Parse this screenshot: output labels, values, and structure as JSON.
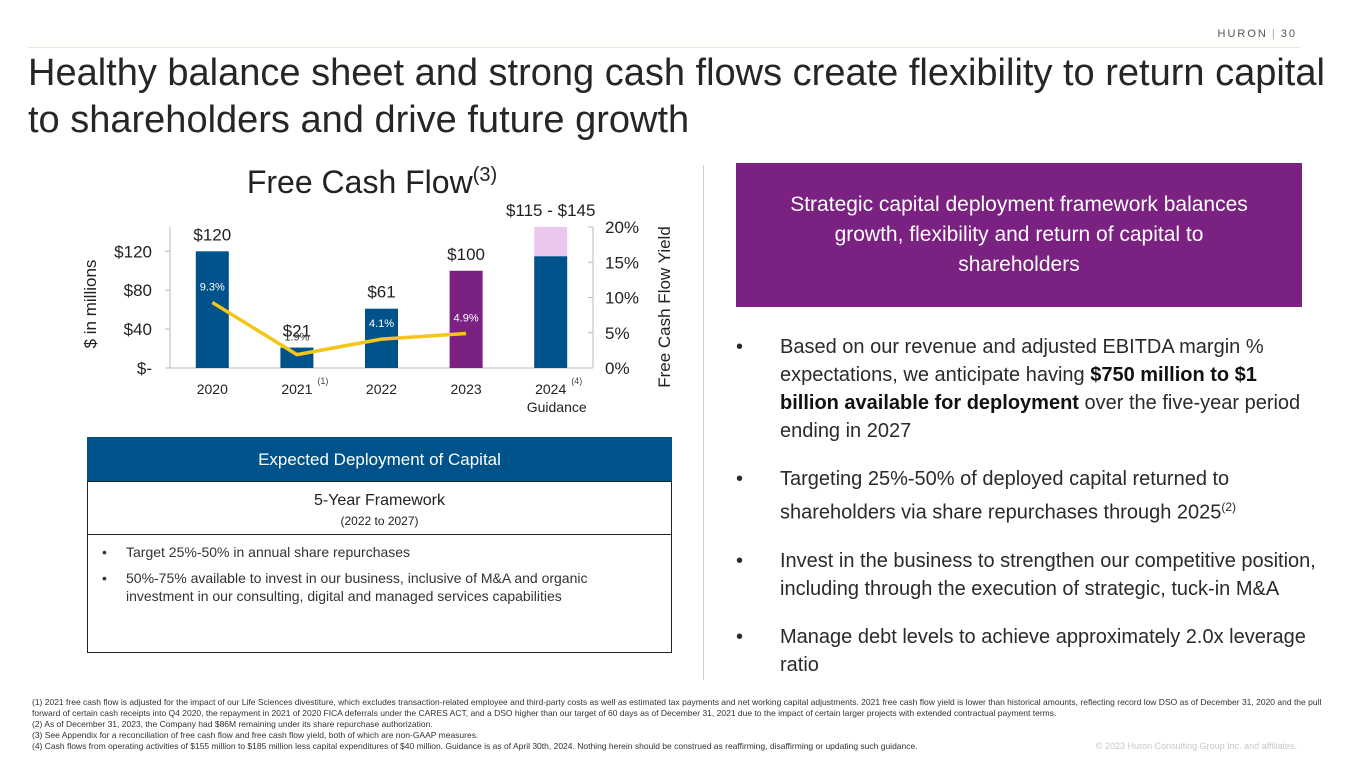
{
  "header": {
    "brand": "HURON",
    "page": "30"
  },
  "title": "Healthy balance sheet and strong cash flows create flexibility to return capital to shareholders and drive future growth",
  "chart_data": {
    "type": "bar",
    "title": "Free Cash Flow",
    "title_sup": "(3)",
    "ylabel": "$ in millions",
    "y2label": "Free Cash Flow Yield",
    "categories": [
      "2020",
      "2021",
      "2022",
      "2023",
      "2024"
    ],
    "category_notes": [
      "",
      "(1)",
      "",
      "",
      "(4)"
    ],
    "category_sub": [
      "",
      "",
      "",
      "",
      "Guidance"
    ],
    "values": [
      120,
      21,
      61,
      100,
      115
    ],
    "range_high": 145,
    "value_labels": [
      "$120",
      "$21",
      "$61",
      "$100",
      "$115  - $145"
    ],
    "bar_colors": [
      "#00538a",
      "#00538a",
      "#00538a",
      "#7a2181",
      "#00538a"
    ],
    "range_color": "#eac7ec",
    "ylim": [
      0,
      145
    ],
    "yticks": [
      0,
      40,
      80,
      120
    ],
    "ytick_labels": [
      "$-",
      "$40",
      "$80",
      "$120"
    ],
    "line": {
      "name": "Free Cash Flow Yield",
      "values": [
        9.3,
        1.9,
        4.1,
        4.9
      ],
      "labels": [
        "9.3%",
        "1.9%",
        "4.1%",
        "4.9%"
      ],
      "color": "#f5c518"
    },
    "y2lim": [
      0,
      20
    ],
    "y2ticks": [
      0,
      5,
      10,
      15,
      20
    ],
    "y2tick_labels": [
      "0%",
      "5%",
      "10%",
      "15%",
      "20%"
    ]
  },
  "deployment": {
    "header": "Expected Deployment of Capital",
    "framework_title": "5-Year Framework",
    "framework_sub": "(2022 to 2027)",
    "items": [
      "Target 25%-50% in annual  share repurchases",
      "50%-75% available to invest in our business, inclusive of M&A and organic investment in our consulting, digital and managed services capabilities"
    ]
  },
  "strategy_box": "Strategic capital deployment framework balances growth, flexibility and return of capital to shareholders",
  "bullets": {
    "b1_pre": "Based on our revenue and adjusted EBITDA margin % expectations, we anticipate having ",
    "b1_bold": "$750 million to $1 billion available for deployment",
    "b1_post": " over the five-year period ending in 2027",
    "b2": "Targeting 25%-50% of deployed capital returned to shareholders via share repurchases through 2025",
    "b2_sup": "(2)",
    "b3": "Invest in the business to strengthen our competitive position, including through the execution of strategic, tuck-in M&A",
    "b4": "Manage debt levels to achieve approximately 2.0x leverage ratio"
  },
  "footnotes": [
    "(1) 2021 free cash flow is adjusted for the impact of our Life Sciences divestiture, which excludes transaction-related employee and third-party costs as well as estimated tax payments and net working capital adjustments. 2021 free cash flow yield is lower than historical amounts, reflecting record low DSO as of December 31, 2020 and the pull forward of certain cash receipts into Q4 2020, the repayment in 2021 of 2020 FICA deferrals under the CARES ACT, and a DSO higher than our target of 60 days as of December 31, 2021 due to the impact of certain larger projects with extended contractual payment terms.",
    "(2) As of December 31, 2023, the Company had $86M remaining under its share repurchase authorization.",
    "(3) See Appendix for a reconciliation of free cash flow and free cash flow yield, both of which are non-GAAP measures.",
    "(4) Cash flows from operating activities of $155 million to $185 million less capital expenditures of $40 million. Guidance is as of April 30th, 2024. Nothing herein should be construed as reaffirming, disaffirming or updating such guidance."
  ],
  "copyright": "© 2023 Huron Consulting Group Inc. and affiliates."
}
